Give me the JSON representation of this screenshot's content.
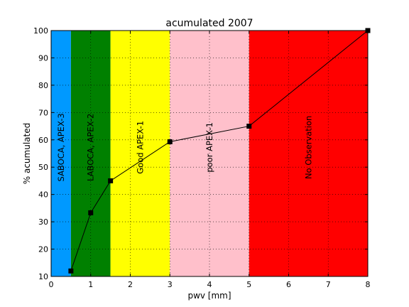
{
  "chart_data": {
    "type": "line",
    "title": "acumulated 2007",
    "xlabel": "pwv [mm]",
    "ylabel": "% acumulated",
    "xlim": [
      0,
      8
    ],
    "ylim": [
      10,
      100
    ],
    "xticks": [
      "0",
      "1",
      "2",
      "3",
      "4",
      "5",
      "6",
      "7",
      "8"
    ],
    "yticks": [
      "10",
      "20",
      "30",
      "40",
      "50",
      "60",
      "70",
      "80",
      "90",
      "100"
    ],
    "grid": true,
    "x": [
      0.5,
      1.0,
      1.5,
      3.0,
      5.0,
      8.0
    ],
    "y": [
      12,
      33.3,
      45,
      59.3,
      65,
      100
    ],
    "line_color": "#000000",
    "marker": "square",
    "bands": [
      {
        "label": "SABOCA, APEX-3",
        "x0": 0,
        "x1": 0.5,
        "color": "#0099ff"
      },
      {
        "label": "LABOCA, APEX-2",
        "x0": 0.5,
        "x1": 1.5,
        "color": "#008000"
      },
      {
        "label": "Good  APEX-1",
        "x0": 1.5,
        "x1": 3,
        "color": "#ffff00"
      },
      {
        "label": "poor  APEX-1",
        "x0": 3,
        "x1": 5,
        "color": "#ffc0cb"
      },
      {
        "label": "No Observation",
        "x0": 5,
        "x1": 8,
        "color": "#ff0000"
      }
    ]
  }
}
